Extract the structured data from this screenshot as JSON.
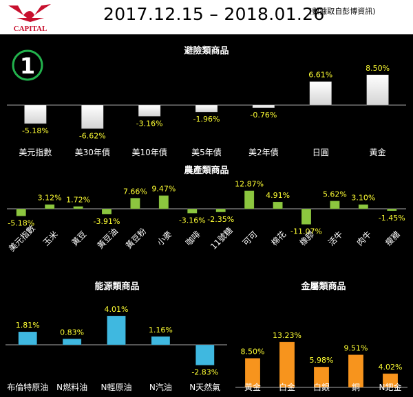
{
  "header": {
    "logo_text": "CAPITAL",
    "date_range": "2017.12.15 – 2018.01.26",
    "source_note": "(數據取自彭博資訊)"
  },
  "badge": {
    "number": "1"
  },
  "colors": {
    "safe_haven": "#ffffff",
    "agriculture": "#8cc63f",
    "energy": "#3fb8e0",
    "metals": "#f7941d",
    "value_label": "#ffff33",
    "badge_ring": "#22b14c"
  },
  "chart_data": [
    {
      "type": "bar",
      "title": "避險類商品",
      "categories": [
        "美元指數",
        "美30年債",
        "美10年債",
        "美5年債",
        "美2年債",
        "日圓",
        "黃金"
      ],
      "values": [
        -5.18,
        -6.62,
        -3.16,
        -1.96,
        -0.76,
        6.61,
        8.5
      ],
      "labels": [
        "-5.18%",
        "-6.62%",
        "-3.16%",
        "-1.96%",
        "-0.76%",
        "6.61%",
        "8.50%"
      ],
      "unit": "%",
      "color": "#ffffff",
      "category_label_rotation": 0
    },
    {
      "type": "bar",
      "title": "農產類商品",
      "categories": [
        "美元指數",
        "玉米",
        "黃豆",
        "黃豆油",
        "黃豆粉",
        "小麥",
        "咖啡",
        "11號糖",
        "可可",
        "棉花",
        "橡膠",
        "活牛",
        "肉牛",
        "瘦豬"
      ],
      "values": [
        -5.18,
        3.12,
        1.72,
        -3.91,
        7.66,
        9.47,
        -3.16,
        -2.35,
        12.87,
        4.91,
        -11.07,
        5.62,
        3.1,
        -1.45
      ],
      "labels": [
        "-5.18%",
        "3.12%",
        "1.72%",
        "-3.91%",
        "7.66%",
        "9.47%",
        "-3.16%",
        "-2.35%",
        "12.87%",
        "4.91%",
        "-11.07%",
        "5.62%",
        "3.10%",
        "-1.45%"
      ],
      "unit": "%",
      "color": "#8cc63f",
      "category_label_rotation": -45
    },
    {
      "type": "bar",
      "title": "能源類商品",
      "categories": [
        "布倫特原油",
        "N燃料油",
        "N輕原油",
        "N汽油",
        "N天然氣"
      ],
      "values": [
        1.81,
        0.83,
        4.01,
        1.16,
        -2.83
      ],
      "labels": [
        "1.81%",
        "0.83%",
        "4.01%",
        "1.16%",
        "-2.83%"
      ],
      "unit": "%",
      "color": "#3fb8e0",
      "category_label_rotation": 0
    },
    {
      "type": "bar",
      "title": "金屬類商品",
      "categories": [
        "黃金",
        "白金",
        "白銀",
        "銅",
        "N鈀金"
      ],
      "values": [
        8.5,
        13.23,
        5.98,
        9.51,
        4.02
      ],
      "labels": [
        "8.50%",
        "13.23%",
        "5.98%",
        "9.51%",
        "4.02%"
      ],
      "unit": "%",
      "color": "#f7941d",
      "category_label_rotation": 0
    }
  ]
}
